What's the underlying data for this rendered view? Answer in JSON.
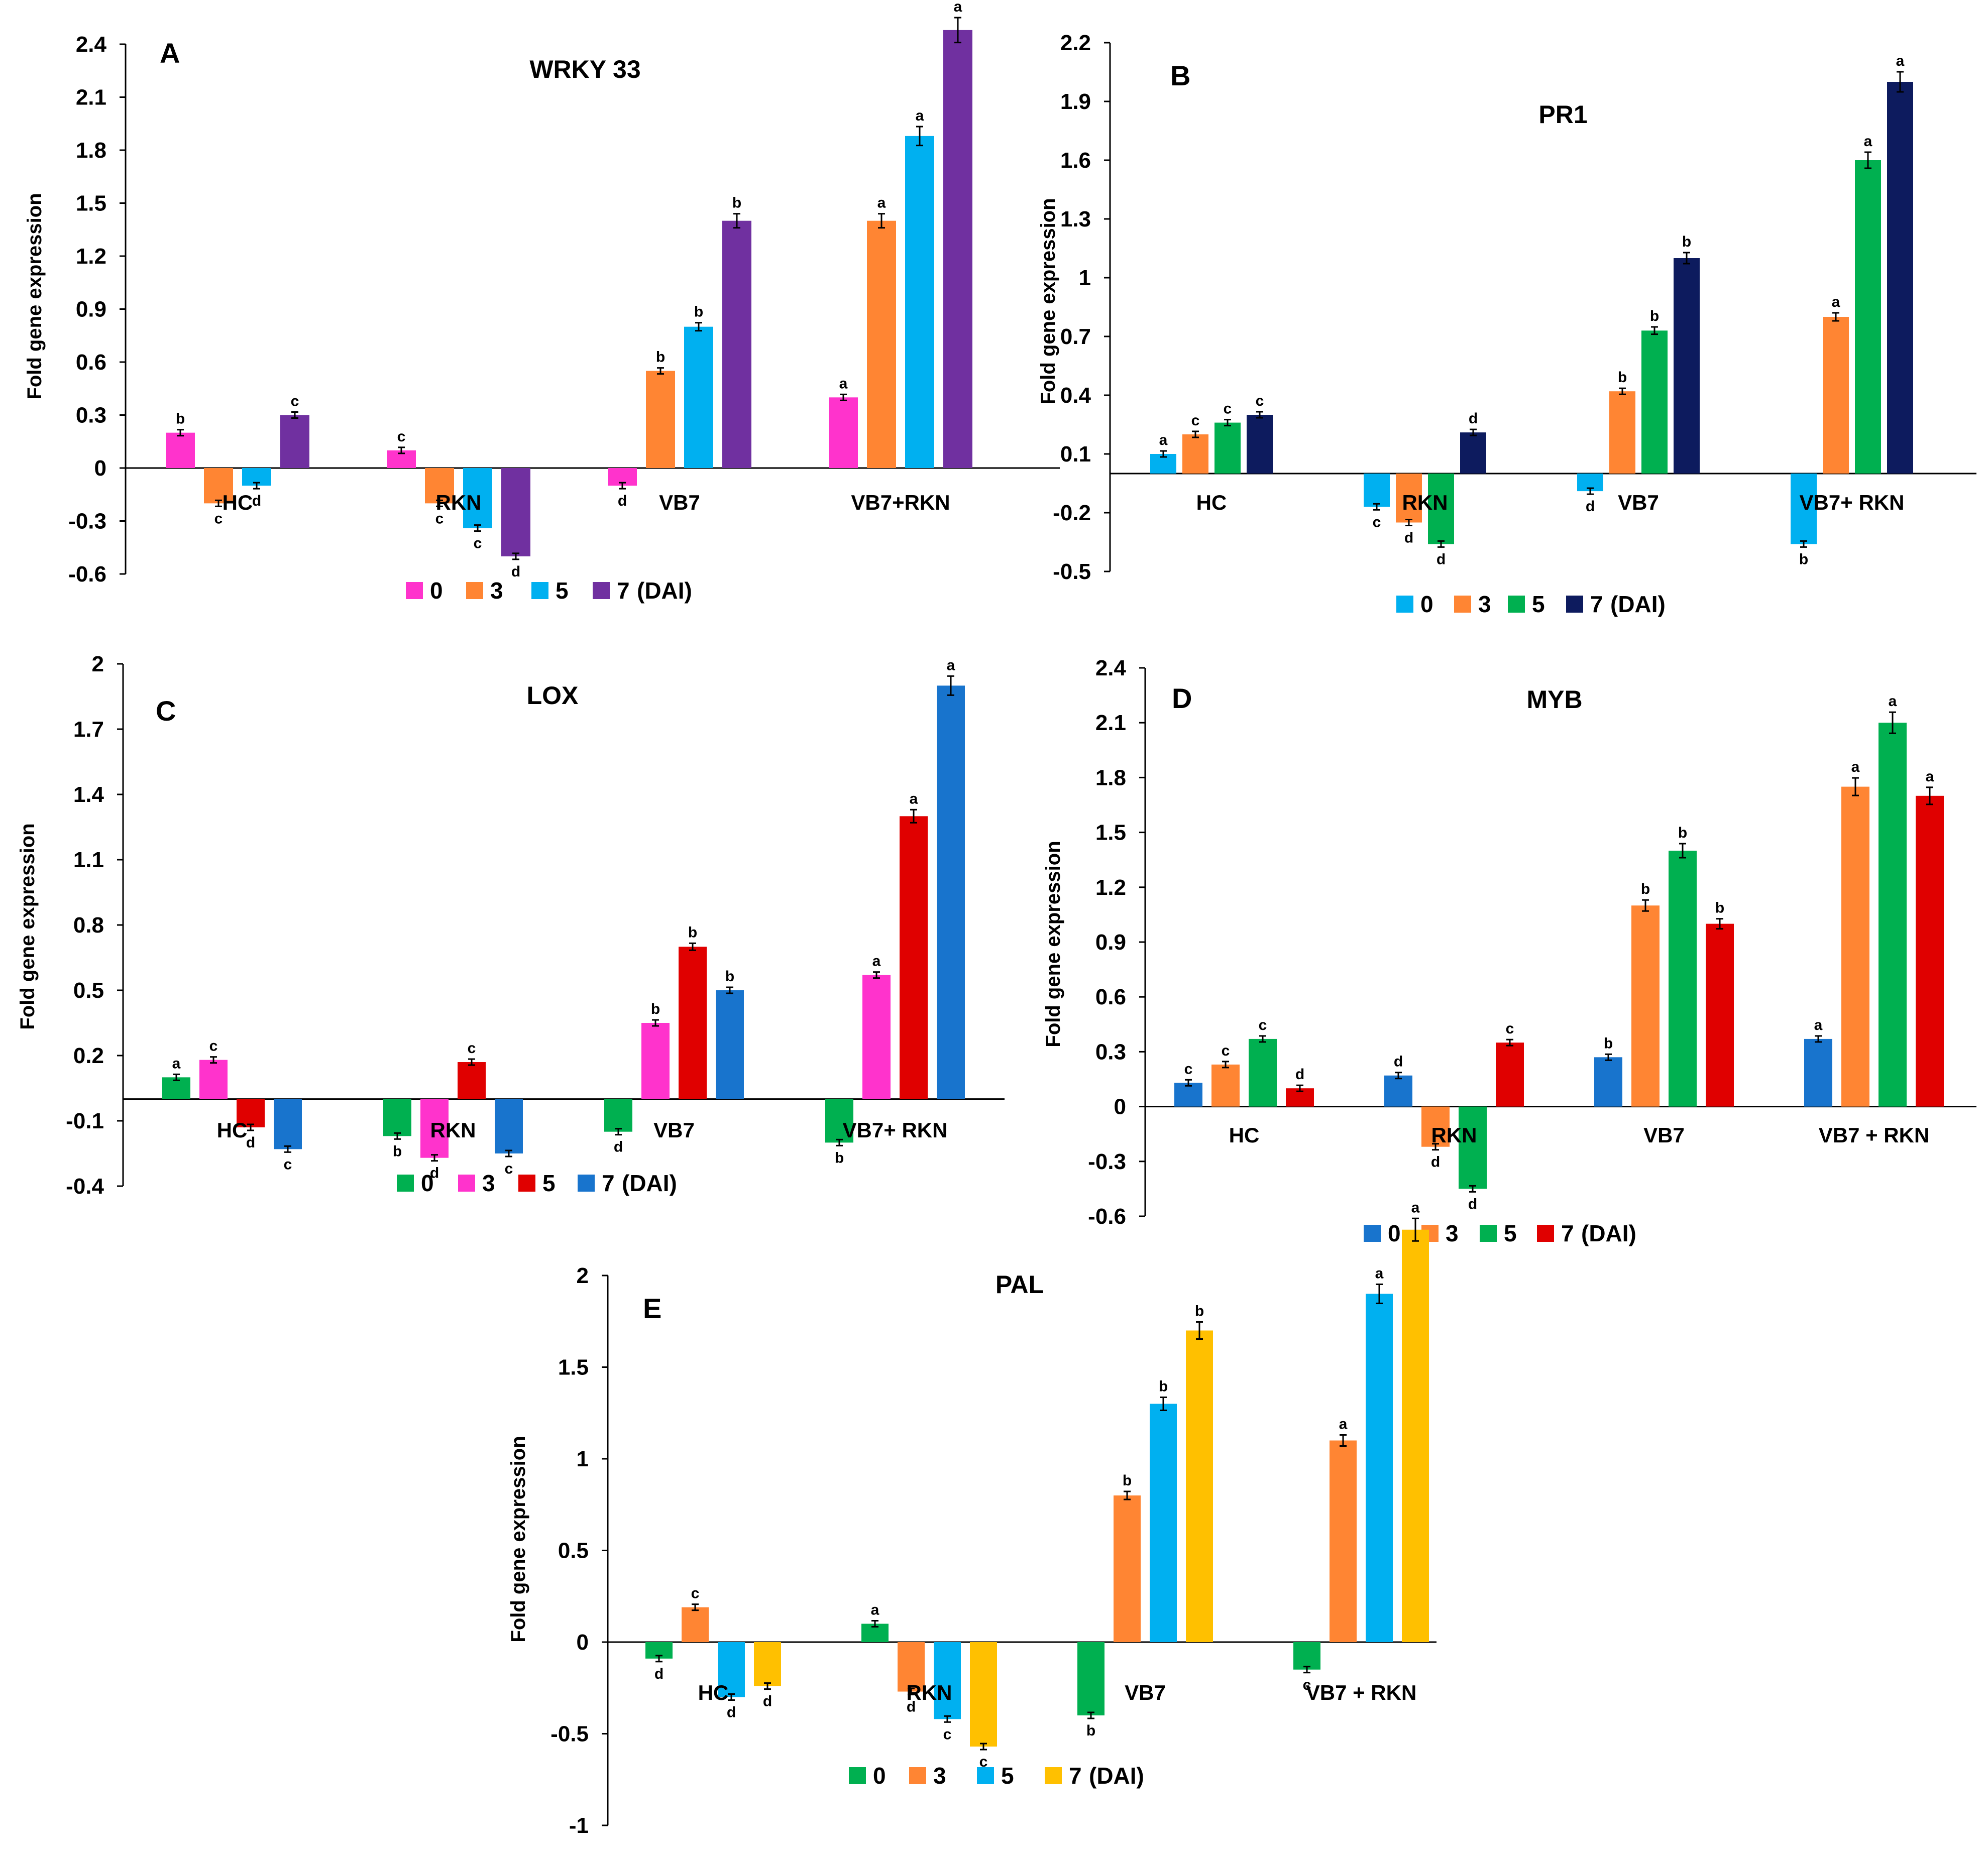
{
  "chart_data": [
    {
      "type": "bar",
      "panel": "A",
      "title": "WRKY 33",
      "ylabel": "Fold gene expression",
      "xlabel": "",
      "ylim": [
        -0.6,
        2.4
      ],
      "yticks": [
        "-0.6",
        "-0.3",
        "0",
        "0.3",
        "0.6",
        "0.9",
        "1.2",
        "1.5",
        "1.8",
        "2.1",
        "2.4"
      ],
      "categories": [
        "HC",
        "RKN",
        "VB7",
        "VB7+RKN"
      ],
      "legend_suffix": "(DAI)",
      "series": [
        {
          "name": "0",
          "color": "#FF33CC",
          "values": [
            0.2,
            0.1,
            -0.1,
            0.4
          ],
          "letters": [
            "b",
            "c",
            "d",
            "a"
          ]
        },
        {
          "name": "3",
          "color": "#FF8533",
          "values": [
            -0.2,
            -0.2,
            0.55,
            1.4
          ],
          "letters": [
            "c",
            "c",
            "b",
            "a"
          ]
        },
        {
          "name": "5",
          "color": "#00B0F0",
          "values": [
            -0.1,
            -0.34,
            0.8,
            1.88
          ],
          "letters": [
            "d",
            "c",
            "b",
            "a"
          ]
        },
        {
          "name": "7",
          "color": "#7030A0",
          "values": [
            0.3,
            -0.5,
            1.4,
            2.48
          ],
          "letters": [
            "c",
            "d",
            "b",
            "a"
          ]
        }
      ]
    },
    {
      "type": "bar",
      "panel": "B",
      "title": "PR1",
      "ylabel": "Fold gene expression",
      "xlabel": "",
      "ylim": [
        -0.5,
        2.2
      ],
      "yticks": [
        "-0.5",
        "-0.2",
        "0.1",
        "0.4",
        "0.7",
        "1",
        "1.3",
        "1.6",
        "1.9",
        "2.2"
      ],
      "categories": [
        "HC",
        "RKN",
        "VB7",
        "VB7+ RKN"
      ],
      "legend_suffix": "(DAI)",
      "series": [
        {
          "name": "0",
          "color": "#00B0F0",
          "values": [
            0.1,
            -0.17,
            -0.09,
            -0.36
          ],
          "letters": [
            "a",
            "c",
            "d",
            "b"
          ]
        },
        {
          "name": "3",
          "color": "#FF8533",
          "values": [
            0.2,
            -0.25,
            0.42,
            0.8
          ],
          "letters": [
            "c",
            "d",
            "b",
            "a"
          ]
        },
        {
          "name": "5",
          "color": "#00B050",
          "values": [
            0.26,
            -0.36,
            0.73,
            1.6
          ],
          "letters": [
            "c",
            "d",
            "b",
            "a"
          ]
        },
        {
          "name": "7",
          "color": "#0D1B5E",
          "values": [
            0.3,
            0.21,
            1.1,
            2.0
          ],
          "letters": [
            "c",
            "d",
            "b",
            "a"
          ]
        }
      ]
    },
    {
      "type": "bar",
      "panel": "C",
      "title": "LOX",
      "ylabel": "Fold gene expression",
      "xlabel": "",
      "ylim": [
        -0.4,
        2.0
      ],
      "yticks": [
        "-0.4",
        "-0.1",
        "0.2",
        "0.5",
        "0.8",
        "1.1",
        "1.4",
        "1.7",
        "2"
      ],
      "categories": [
        "HC",
        "RKN",
        "VB7",
        "VB7+ RKN"
      ],
      "legend_suffix": "(DAI)",
      "series": [
        {
          "name": "0",
          "color": "#00B050",
          "values": [
            0.1,
            -0.17,
            -0.15,
            -0.2
          ],
          "letters": [
            "a",
            "b",
            "d",
            "b"
          ]
        },
        {
          "name": "3",
          "color": "#FF33CC",
          "values": [
            0.18,
            -0.27,
            0.35,
            0.57
          ],
          "letters": [
            "c",
            "d",
            "b",
            "a"
          ]
        },
        {
          "name": "5",
          "color": "#E00000",
          "values": [
            -0.13,
            0.17,
            0.7,
            1.3
          ],
          "letters": [
            "d",
            "c",
            "b",
            "a"
          ]
        },
        {
          "name": "7",
          "color": "#1874CD",
          "values": [
            -0.23,
            -0.25,
            0.5,
            1.9
          ],
          "letters": [
            "c",
            "c",
            "b",
            "a"
          ]
        }
      ]
    },
    {
      "type": "bar",
      "panel": "D",
      "title": "MYB",
      "ylabel": "Fold gene expression",
      "xlabel": "",
      "ylim": [
        -0.6,
        2.4
      ],
      "yticks": [
        "-0.6",
        "-0.3",
        "0",
        "0.3",
        "0.6",
        "0.9",
        "1.2",
        "1.5",
        "1.8",
        "2.1",
        "2.4"
      ],
      "categories": [
        "HC",
        "RKN",
        "VB7",
        "VB7 + RKN"
      ],
      "legend_suffix": "(DAI)",
      "series": [
        {
          "name": "0",
          "color": "#1874CD",
          "values": [
            0.13,
            0.17,
            0.27,
            0.37
          ],
          "letters": [
            "c",
            "d",
            "b",
            "a"
          ]
        },
        {
          "name": "3",
          "color": "#FF8533",
          "values": [
            0.23,
            -0.22,
            1.1,
            1.75
          ],
          "letters": [
            "c",
            "d",
            "b",
            "a"
          ]
        },
        {
          "name": "5",
          "color": "#00B050",
          "values": [
            0.37,
            -0.45,
            1.4,
            2.1
          ],
          "letters": [
            "c",
            "d",
            "b",
            "a"
          ]
        },
        {
          "name": "7",
          "color": "#E00000",
          "values": [
            0.1,
            0.35,
            1.0,
            1.7
          ],
          "letters": [
            "d",
            "c",
            "b",
            "a"
          ]
        }
      ]
    },
    {
      "type": "bar",
      "panel": "E",
      "title": "PAL",
      "ylabel": "Fold gene expression",
      "xlabel": "",
      "ylim": [
        -1.0,
        2.0
      ],
      "yticks": [
        "-1",
        "-0.5",
        "0",
        "0.5",
        "1",
        "1.5",
        "2"
      ],
      "categories": [
        "HC",
        "RKN",
        "VB7",
        "VB7 + RKN"
      ],
      "legend_suffix": "(DAI)",
      "series": [
        {
          "name": "0",
          "color": "#00B050",
          "values": [
            -0.09,
            0.1,
            -0.4,
            -0.15
          ],
          "letters": [
            "d",
            "a",
            "b",
            "c"
          ]
        },
        {
          "name": "3",
          "color": "#FF8533",
          "values": [
            0.19,
            -0.27,
            0.8,
            1.1
          ],
          "letters": [
            "c",
            "d",
            "b",
            "a"
          ]
        },
        {
          "name": "5",
          "color": "#00B0F0",
          "values": [
            -0.3,
            -0.42,
            1.3,
            1.9
          ],
          "letters": [
            "d",
            "c",
            "b",
            "a"
          ]
        },
        {
          "name": "7",
          "color": "#FFC000",
          "values": [
            -0.24,
            -0.57,
            1.7,
            2.25
          ],
          "letters": [
            "d",
            "c",
            "b",
            "a"
          ]
        }
      ]
    }
  ]
}
